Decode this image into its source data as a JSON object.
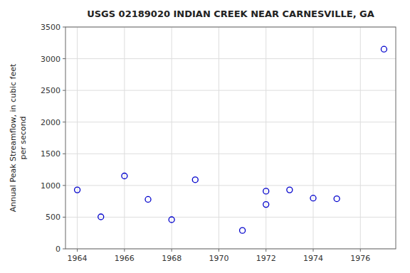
{
  "chart_data": {
    "type": "scatter",
    "title": "USGS 02189020 INDIAN CREEK NEAR CARNESVILLE, GA",
    "y_label": "Annual Peak Streamflow, in cubic feet\nper second",
    "x": [
      1964,
      1965,
      1966,
      1967,
      1968,
      1969,
      1971,
      1972,
      1972,
      1973,
      1974,
      1975,
      1977
    ],
    "values": [
      930,
      505,
      1150,
      780,
      460,
      1090,
      290,
      910,
      700,
      930,
      800,
      790,
      3150
    ],
    "xlim": [
      1963.5,
      1977.5
    ],
    "ylim": [
      0,
      3500
    ],
    "xticks": [
      1964,
      1966,
      1968,
      1970,
      1972,
      1974,
      1976
    ],
    "yticks": [
      0,
      500,
      1000,
      1500,
      2000,
      2500,
      3000,
      3500
    ],
    "color": "#0000cc",
    "marker": "open-circle",
    "grid": true
  }
}
